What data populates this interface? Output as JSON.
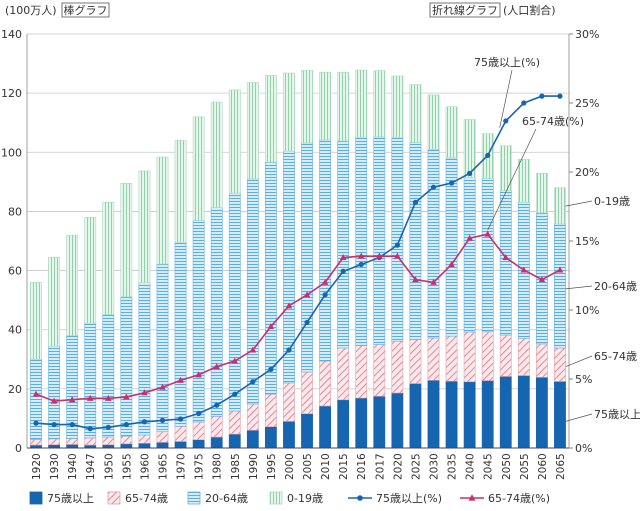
{
  "chart_data": {
    "type": "bar",
    "left_unit_label": "(100万人)",
    "left_tag": "棒グラフ",
    "right_tag": "折れ線グラフ",
    "right_unit_label": "(人口割合)",
    "categories": [
      "1920",
      "1930",
      "1940",
      "1947",
      "1950",
      "1955",
      "1960",
      "1965",
      "1970",
      "1975",
      "1980",
      "1985",
      "1990",
      "1995",
      "2000",
      "2005",
      "2010",
      "2015",
      "2016",
      "2017",
      "2020",
      "2025",
      "2030",
      "2035",
      "2040",
      "2045",
      "2050",
      "2055",
      "2060",
      "2065"
    ],
    "ylim": [
      0,
      140
    ],
    "yticks": [
      0,
      20,
      40,
      60,
      80,
      100,
      120,
      140
    ],
    "y2lim": [
      0,
      30
    ],
    "y2ticks": [
      0,
      5,
      10,
      15,
      20,
      25,
      30
    ],
    "y2tick_labels": [
      "0%",
      "5%",
      "10%",
      "15%",
      "20%",
      "25%",
      "30%"
    ],
    "stack_series": [
      {
        "name": "75歳以上",
        "color": "#1565b0",
        "pattern": "solid",
        "values": [
          1.0,
          1.1,
          1.2,
          1.0,
          1.1,
          1.4,
          1.6,
          1.9,
          2.2,
          2.8,
          3.7,
          4.7,
          6.0,
          7.2,
          9.0,
          11.6,
          14.2,
          16.3,
          16.9,
          17.5,
          18.6,
          21.8,
          22.9,
          22.6,
          22.4,
          22.8,
          24.2,
          24.5,
          23.9,
          22.5
        ]
      },
      {
        "name": "65-74歳",
        "color": "#e8a0aa",
        "pattern": "hatch",
        "values": [
          1.9,
          2.0,
          2.0,
          2.4,
          2.6,
          2.6,
          2.8,
          3.6,
          5.1,
          6.0,
          7.0,
          7.8,
          8.9,
          11.0,
          13.0,
          14.1,
          15.2,
          17.5,
          17.7,
          17.5,
          17.5,
          14.9,
          14.3,
          15.2,
          16.8,
          16.5,
          14.0,
          12.6,
          11.3,
          11.3
        ]
      },
      {
        "name": "20-64歳",
        "color": "#64b4e6",
        "pattern": "hlines",
        "values": [
          27.1,
          31.3,
          34.8,
          38.8,
          41.4,
          47.1,
          51.5,
          56.7,
          62.3,
          68.1,
          70.6,
          73.7,
          76.1,
          78.4,
          78.4,
          77.5,
          74.8,
          70.0,
          70.5,
          70.2,
          68.8,
          66.6,
          63.8,
          60.3,
          52.2,
          51.9,
          48.8,
          46.0,
          44.3,
          42.0
        ]
      },
      {
        "name": "0-19歳",
        "color": "#a8dcc0",
        "pattern": "vlines",
        "values": [
          26.0,
          30.1,
          34.0,
          35.8,
          38.0,
          38.4,
          37.8,
          36.2,
          34.4,
          35.1,
          35.7,
          34.9,
          32.6,
          29.4,
          26.4,
          24.5,
          22.9,
          23.3,
          22.7,
          22.4,
          20.9,
          19.6,
          18.4,
          17.3,
          19.7,
          15.1,
          15.2,
          14.5,
          13.4,
          12.2
        ]
      }
    ],
    "line_series": [
      {
        "name": "75歳以上(%)",
        "color": "#1565b0",
        "marker": "circle",
        "values": [
          1.8,
          1.7,
          1.7,
          1.4,
          1.5,
          1.7,
          1.9,
          2.0,
          2.1,
          2.5,
          3.1,
          3.9,
          4.8,
          5.7,
          7.1,
          9.1,
          11.1,
          12.8,
          13.3,
          13.8,
          14.7,
          17.8,
          18.9,
          19.2,
          19.9,
          21.2,
          23.7,
          25.0,
          25.5,
          25.5
        ]
      },
      {
        "name": "65-74歳(%)",
        "color": "#c8306c",
        "marker": "triangle",
        "values": [
          3.9,
          3.4,
          3.5,
          3.6,
          3.6,
          3.7,
          4.0,
          4.4,
          4.9,
          5.3,
          5.9,
          6.3,
          7.1,
          8.8,
          10.3,
          11.1,
          12.0,
          13.8,
          13.9,
          13.9,
          13.9,
          12.2,
          12.0,
          13.3,
          15.2,
          15.5,
          13.8,
          12.9,
          12.2,
          12.9
        ]
      }
    ],
    "series_labels": {
      "label_75_line": "75歳以上(%)",
      "label_6574_line": "65-74歳(%)",
      "label_019": "0-19歳",
      "label_2064": "20-64歳",
      "label_6574": "65-74歳",
      "label_75": "75歳以上"
    },
    "legend": [
      {
        "label": "75歳以上",
        "kind": "rect",
        "color": "#1565b0",
        "pattern": "solid"
      },
      {
        "label": "65-74歳",
        "kind": "rect",
        "color": "#e8a0aa",
        "pattern": "hatch"
      },
      {
        "label": "20-64歳",
        "kind": "rect",
        "color": "#64b4e6",
        "pattern": "hlines"
      },
      {
        "label": "0-19歳",
        "kind": "rect",
        "color": "#a8dcc0",
        "pattern": "vlines"
      },
      {
        "label": "75歳以上(%)",
        "kind": "line",
        "color": "#1565b0",
        "marker": "circle"
      },
      {
        "label": "65-74歳(%)",
        "kind": "line",
        "color": "#c8306c",
        "marker": "triangle"
      }
    ],
    "legend_position": "bottom",
    "grid": true
  }
}
